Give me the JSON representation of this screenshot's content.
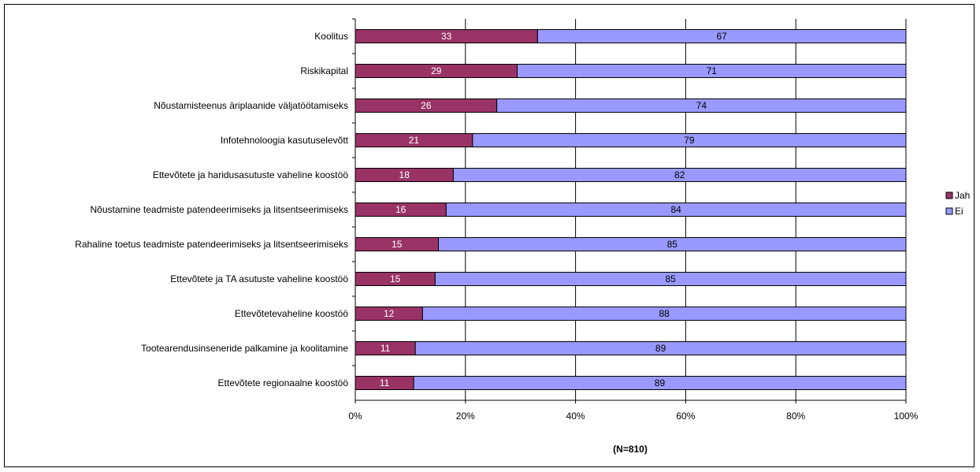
{
  "chart_data": {
    "type": "bar",
    "orientation": "horizontal",
    "stacked": true,
    "categories": [
      "Koolitus",
      "Riskikapital",
      "Nõustamisteenus äriplaanide väljatöötamiseks",
      "Infotehnoloogia kasutuselevõtt",
      "Ettevõtete ja haridusasutuste vaheline koostöö",
      "Nõustamine teadmiste patendeerimiseks ja litsentseerimiseks",
      "Rahaline toetus teadmiste patendeerimiseks ja litsentseerimiseks",
      "Ettevõtete ja TA asutuste vaheline koostöö",
      "Ettevõtetevaheline koostöö",
      "Tootearendusinseneride palkamine ja koolitamine",
      "Ettevõtete regionaalne koostöö"
    ],
    "series": [
      {
        "name": "Jah",
        "color": "#993366",
        "label_color": "#ffffff",
        "values": [
          33,
          29,
          26,
          21,
          18,
          16,
          15,
          15,
          12,
          11,
          11
        ],
        "plotted_values": [
          33.1,
          29.4,
          25.7,
          21.3,
          17.8,
          16.5,
          15.1,
          14.5,
          12.2,
          10.9,
          10.6
        ]
      },
      {
        "name": "Ei",
        "color": "#9999ff",
        "label_color": "#000000",
        "values": [
          67,
          71,
          74,
          79,
          82,
          84,
          85,
          85,
          88,
          89,
          89
        ]
      }
    ],
    "x_ticks": [
      "0%",
      "20%",
      "40%",
      "60%",
      "80%",
      "100%"
    ],
    "xlim": [
      0,
      100
    ],
    "grid": true,
    "legend_position": "right",
    "annotation": "(N=810)"
  }
}
